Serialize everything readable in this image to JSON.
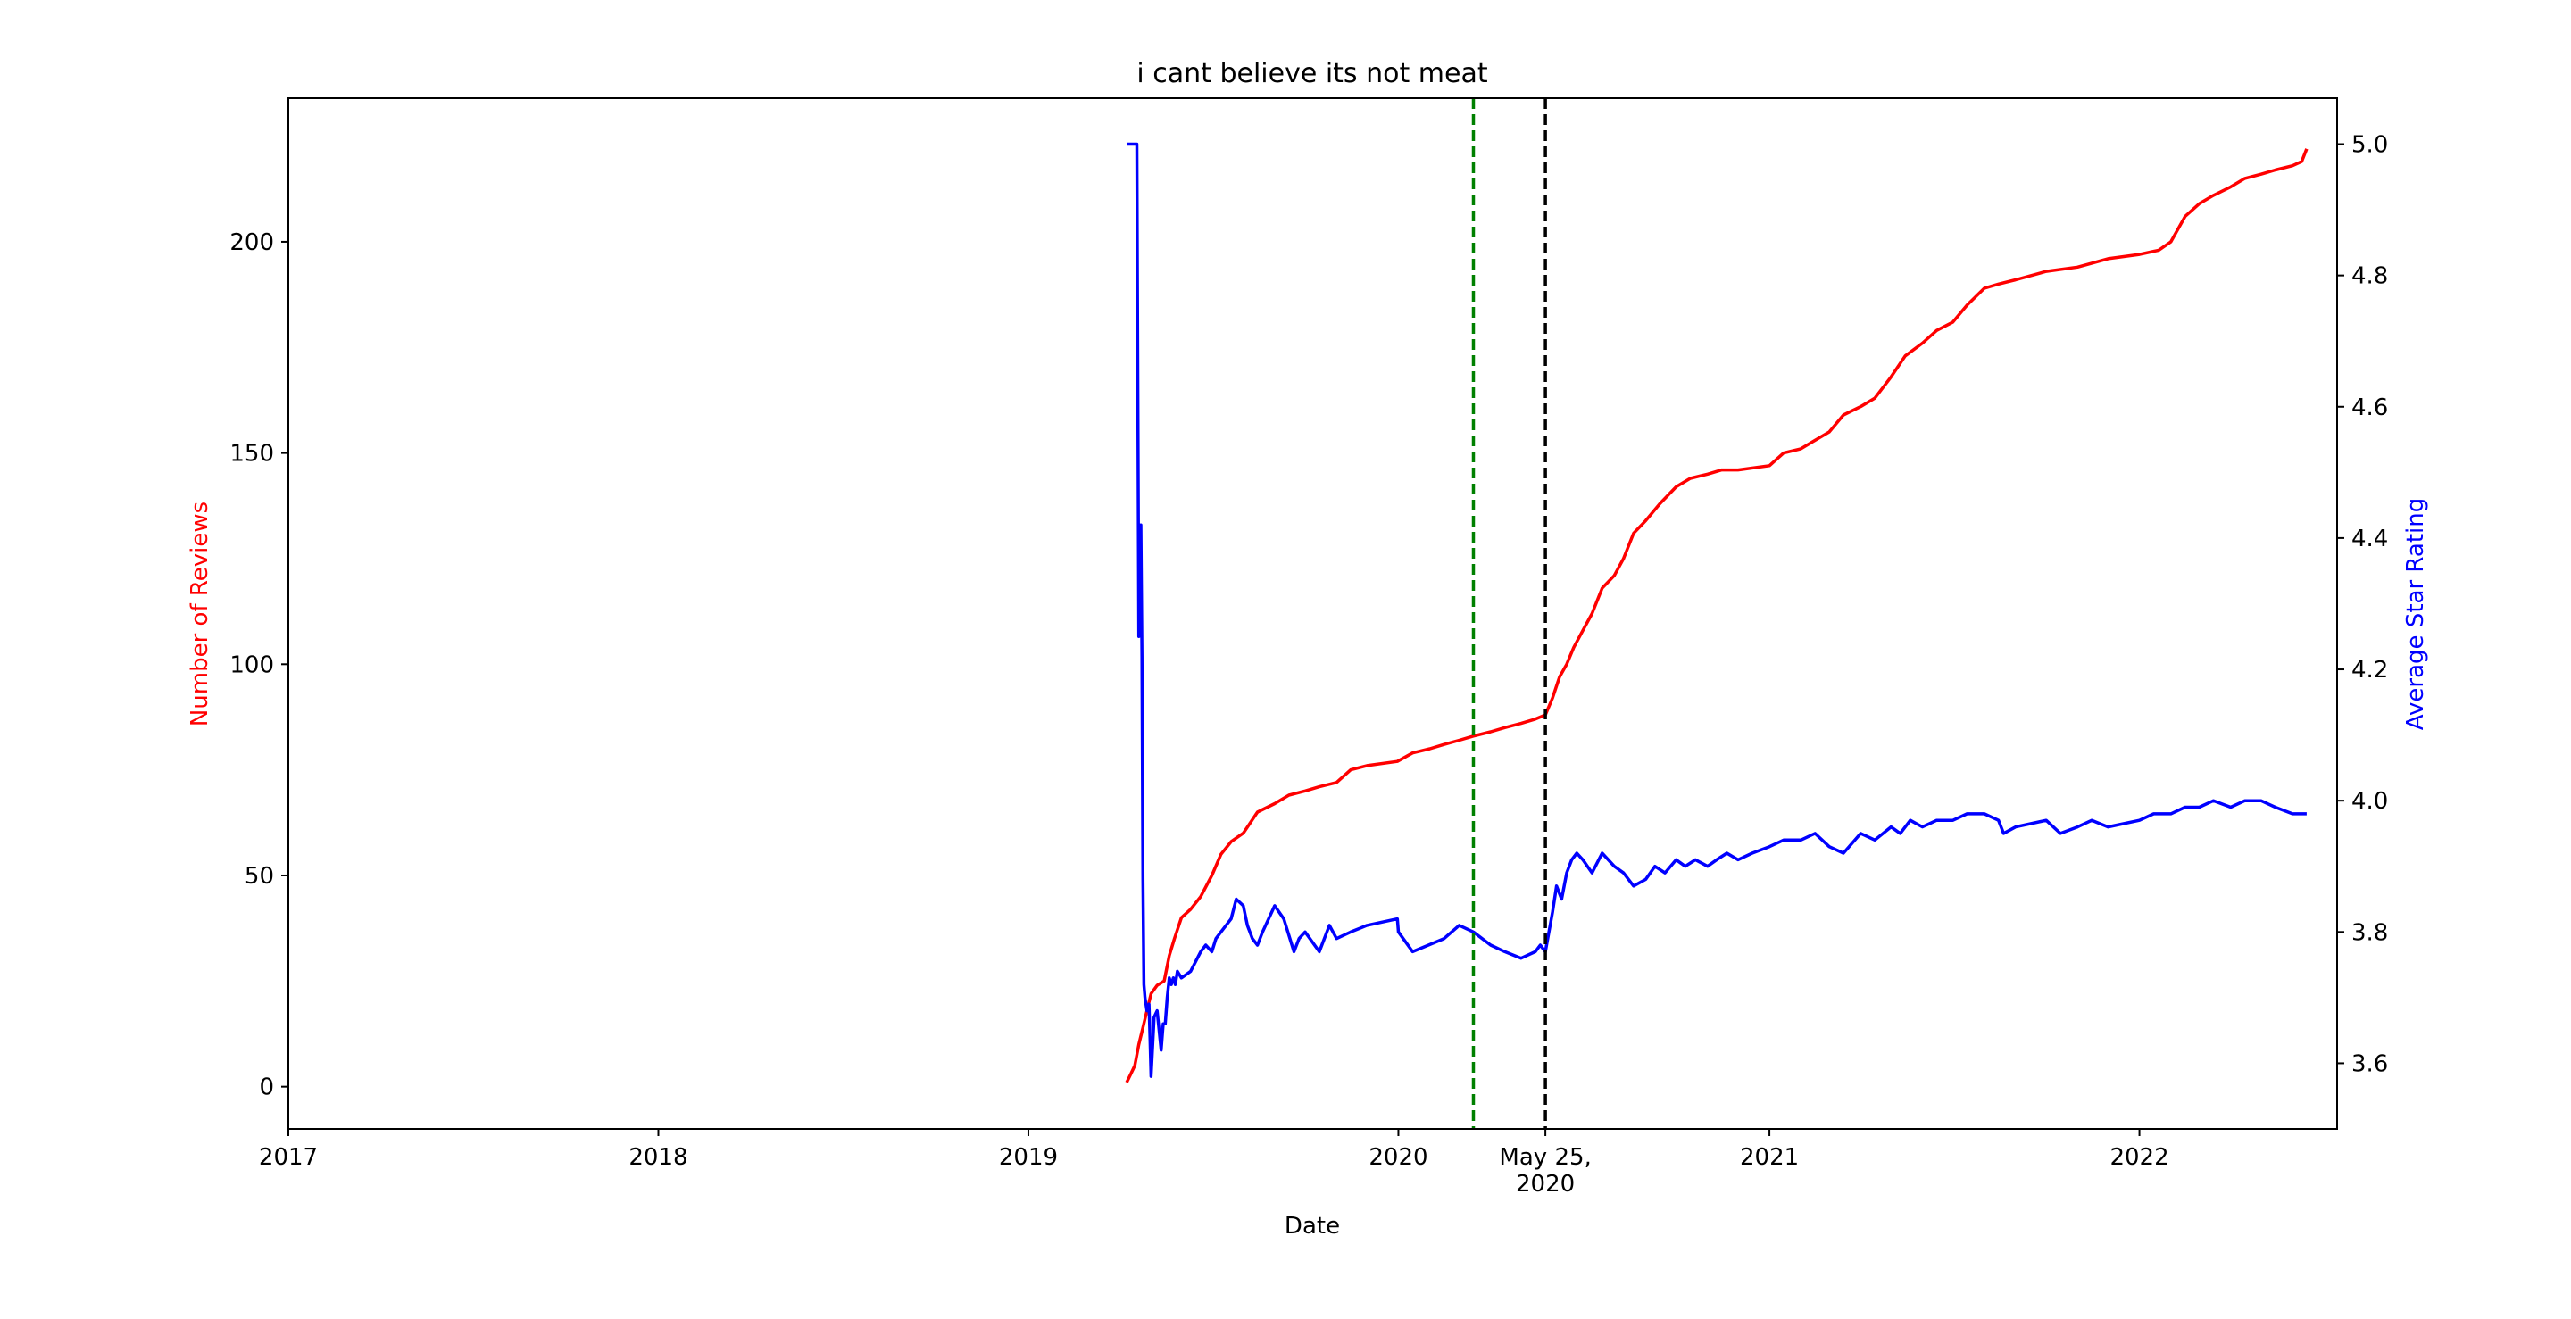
{
  "chart_data": {
    "type": "line",
    "title": "i cant believe its not meat",
    "xlabel": "Date",
    "ylabel_left": "Number of Reviews",
    "ylabel_right": "Average Star Rating",
    "xlim": [
      "2017-01-01",
      "2022-07-15"
    ],
    "ylim_left": [
      -10,
      234
    ],
    "ylim_right": [
      3.5,
      5.07
    ],
    "x_ticks": [
      {
        "date": "2017-01-01",
        "label": [
          "2017"
        ]
      },
      {
        "date": "2018-01-01",
        "label": [
          "2018"
        ]
      },
      {
        "date": "2019-01-01",
        "label": [
          "2019"
        ]
      },
      {
        "date": "2020-01-01",
        "label": [
          "2020"
        ]
      },
      {
        "date": "2020-05-25",
        "label": [
          "May 25,",
          "2020"
        ]
      },
      {
        "date": "2021-01-01",
        "label": [
          "2021"
        ]
      },
      {
        "date": "2022-01-01",
        "label": [
          "2022"
        ]
      }
    ],
    "y_ticks_left": [
      "0",
      "50",
      "100",
      "150",
      "200"
    ],
    "y_ticks_right": [
      "3.6",
      "3.8",
      "4.0",
      "4.2",
      "4.4",
      "4.6",
      "4.8",
      "5.0"
    ],
    "grid": false,
    "vlines": [
      {
        "date": "2020-03-15",
        "color": "#008000",
        "style": "dashed"
      },
      {
        "date": "2020-05-25",
        "color": "#000000",
        "style": "dashed"
      }
    ],
    "series": [
      {
        "axis": "left",
        "color": "#ff0000",
        "x": [
          "2019-04-08",
          "2019-04-12",
          "2019-04-16",
          "2019-04-20",
          "2019-04-24",
          "2019-04-28",
          "2019-05-02",
          "2019-05-08",
          "2019-05-15",
          "2019-05-20",
          "2019-05-25",
          "2019-06-01",
          "2019-06-10",
          "2019-06-20",
          "2019-07-01",
          "2019-07-10",
          "2019-07-20",
          "2019-08-01",
          "2019-08-15",
          "2019-09-01",
          "2019-09-15",
          "2019-10-01",
          "2019-10-15",
          "2019-11-01",
          "2019-11-15",
          "2019-12-01",
          "2019-12-31",
          "2020-01-15",
          "2020-02-01",
          "2020-02-15",
          "2020-03-01",
          "2020-03-15",
          "2020-04-01",
          "2020-04-15",
          "2020-05-01",
          "2020-05-15",
          "2020-05-25",
          "2020-06-01",
          "2020-06-08",
          "2020-06-15",
          "2020-06-22",
          "2020-07-01",
          "2020-07-10",
          "2020-07-20",
          "2020-08-01",
          "2020-08-10",
          "2020-08-20",
          "2020-09-01",
          "2020-09-15",
          "2020-10-01",
          "2020-10-15",
          "2020-11-01",
          "2020-11-15",
          "2020-12-01",
          "2021-01-01",
          "2021-01-15",
          "2021-02-01",
          "2021-02-15",
          "2021-03-01",
          "2021-03-15",
          "2021-04-01",
          "2021-04-15",
          "2021-05-01",
          "2021-05-15",
          "2021-06-01",
          "2021-06-15",
          "2021-07-01",
          "2021-07-15",
          "2021-08-01",
          "2021-08-15",
          "2021-09-01",
          "2021-10-01",
          "2021-11-01",
          "2021-12-01",
          "2022-01-01",
          "2022-01-20",
          "2022-02-01",
          "2022-02-15",
          "2022-03-01",
          "2022-03-15",
          "2022-04-01",
          "2022-04-15",
          "2022-05-01",
          "2022-05-15",
          "2022-06-01",
          "2022-06-10",
          "2022-06-15"
        ],
        "values": [
          1,
          3,
          5,
          10,
          14,
          18,
          22,
          24,
          25,
          31,
          35,
          40,
          42,
          45,
          50,
          55,
          58,
          60,
          65,
          67,
          69,
          70,
          71,
          72,
          75,
          76,
          77,
          79,
          80,
          81,
          82,
          83,
          84,
          85,
          86,
          87,
          88,
          92,
          97,
          100,
          104,
          108,
          112,
          118,
          121,
          125,
          131,
          134,
          138,
          142,
          144,
          145,
          146,
          146,
          147,
          150,
          151,
          153,
          155,
          159,
          161,
          163,
          168,
          173,
          176,
          179,
          181,
          185,
          189,
          190,
          191,
          193,
          194,
          196,
          197,
          198,
          200,
          206,
          209,
          211,
          213,
          215,
          216,
          217,
          218,
          219,
          222
        ]
      },
      {
        "axis": "right",
        "color": "#0000ff",
        "x": [
          "2019-04-08",
          "2019-04-18",
          "2019-04-19",
          "2019-04-20",
          "2019-04-21",
          "2019-04-22",
          "2019-04-23",
          "2019-04-24",
          "2019-04-25",
          "2019-04-26",
          "2019-04-28",
          "2019-04-30",
          "2019-05-01",
          "2019-05-02",
          "2019-05-05",
          "2019-05-08",
          "2019-05-12",
          "2019-05-14",
          "2019-05-16",
          "2019-05-18",
          "2019-05-20",
          "2019-05-22",
          "2019-05-24",
          "2019-05-26",
          "2019-05-28",
          "2019-06-01",
          "2019-06-10",
          "2019-06-20",
          "2019-06-25",
          "2019-07-01",
          "2019-07-05",
          "2019-07-10",
          "2019-07-20",
          "2019-07-25",
          "2019-08-01",
          "2019-08-05",
          "2019-08-10",
          "2019-08-15",
          "2019-08-20",
          "2019-09-01",
          "2019-09-10",
          "2019-09-20",
          "2019-09-25",
          "2019-10-01",
          "2019-10-15",
          "2019-10-25",
          "2019-11-01",
          "2019-11-15",
          "2019-12-01",
          "2019-12-31",
          "2020-01-01",
          "2020-01-15",
          "2020-02-15",
          "2020-03-01",
          "2020-03-15",
          "2020-04-01",
          "2020-04-15",
          "2020-05-01",
          "2020-05-15",
          "2020-05-20",
          "2020-05-25",
          "2020-06-01",
          "2020-06-05",
          "2020-06-10",
          "2020-06-15",
          "2020-06-20",
          "2020-06-25",
          "2020-07-01",
          "2020-07-10",
          "2020-07-20",
          "2020-08-01",
          "2020-08-10",
          "2020-08-20",
          "2020-09-01",
          "2020-09-10",
          "2020-09-20",
          "2020-10-01",
          "2020-10-10",
          "2020-10-20",
          "2020-11-01",
          "2020-11-10",
          "2020-11-20",
          "2020-12-01",
          "2020-12-15",
          "2021-01-01",
          "2021-01-15",
          "2021-02-01",
          "2021-02-15",
          "2021-03-01",
          "2021-03-15",
          "2021-04-01",
          "2021-04-15",
          "2021-05-01",
          "2021-05-10",
          "2021-05-20",
          "2021-06-01",
          "2021-06-15",
          "2021-07-01",
          "2021-07-15",
          "2021-08-01",
          "2021-08-15",
          "2021-08-20",
          "2021-09-01",
          "2021-10-01",
          "2021-10-15",
          "2021-11-01",
          "2021-11-15",
          "2021-12-01",
          "2022-01-01",
          "2022-01-15",
          "2022-02-01",
          "2022-02-15",
          "2022-03-01",
          "2022-03-15",
          "2022-04-01",
          "2022-04-15",
          "2022-05-01",
          "2022-05-15",
          "2022-06-01",
          "2022-06-10",
          "2022-06-15"
        ],
        "values": [
          5.0,
          5.0,
          4.62,
          4.25,
          4.38,
          4.42,
          4.22,
          3.88,
          3.72,
          3.7,
          3.68,
          3.69,
          3.64,
          3.58,
          3.67,
          3.68,
          3.62,
          3.66,
          3.66,
          3.7,
          3.73,
          3.72,
          3.73,
          3.72,
          3.74,
          3.73,
          3.74,
          3.77,
          3.78,
          3.77,
          3.79,
          3.8,
          3.82,
          3.85,
          3.84,
          3.81,
          3.79,
          3.78,
          3.8,
          3.84,
          3.82,
          3.77,
          3.79,
          3.8,
          3.77,
          3.81,
          3.79,
          3.8,
          3.81,
          3.82,
          3.8,
          3.77,
          3.79,
          3.81,
          3.8,
          3.78,
          3.77,
          3.76,
          3.77,
          3.78,
          3.77,
          3.83,
          3.87,
          3.85,
          3.89,
          3.91,
          3.92,
          3.91,
          3.89,
          3.92,
          3.9,
          3.89,
          3.87,
          3.88,
          3.9,
          3.89,
          3.91,
          3.9,
          3.91,
          3.9,
          3.91,
          3.92,
          3.91,
          3.92,
          3.93,
          3.94,
          3.94,
          3.95,
          3.93,
          3.92,
          3.95,
          3.94,
          3.96,
          3.95,
          3.97,
          3.96,
          3.97,
          3.97,
          3.98,
          3.98,
          3.97,
          3.95,
          3.96,
          3.97,
          3.95,
          3.96,
          3.97,
          3.96,
          3.97,
          3.98,
          3.98,
          3.99,
          3.99,
          4.0,
          3.99,
          4.0,
          4.0,
          3.99,
          3.98,
          3.98,
          3.98
        ]
      }
    ]
  }
}
